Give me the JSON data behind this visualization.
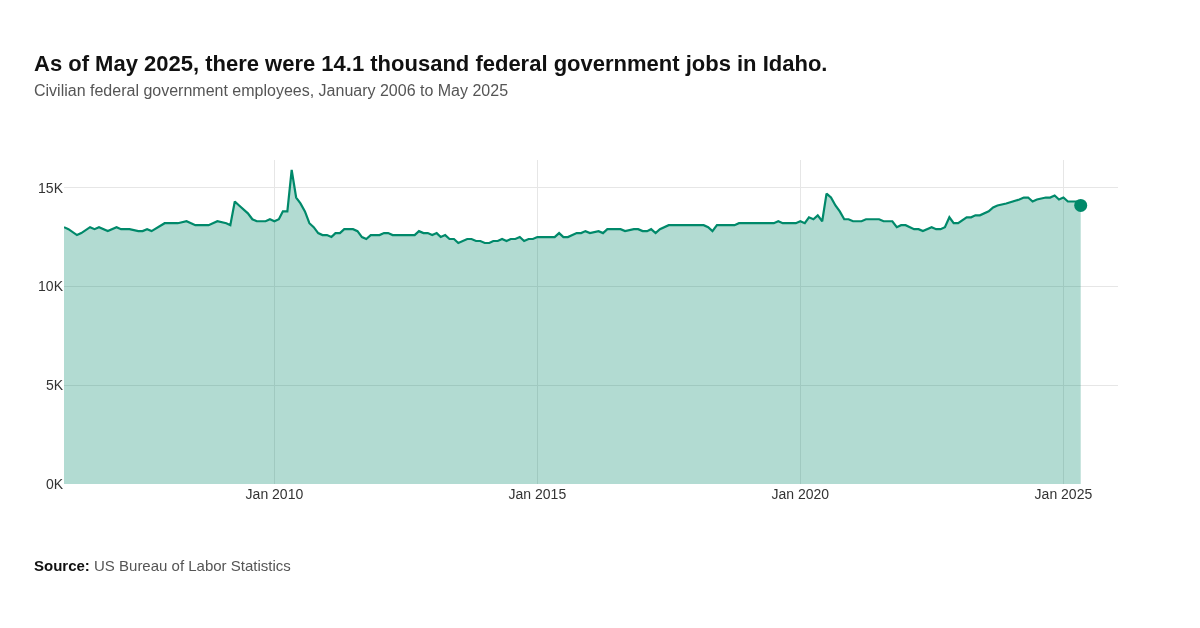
{
  "chart_data": {
    "type": "area",
    "title": "As of May 2025, there were 14.1 thousand federal government jobs in Idaho.",
    "subtitle": "Civilian federal government employees, January 2006 to May 2025",
    "annotations": [
      "Source: US Bureau of Labor Statistics"
    ],
    "series": [
      {
        "color": "#00896a",
        "x": [
          "2006-01",
          "2006-02",
          "2006-04",
          "2006-05",
          "2006-07",
          "2006-08",
          "2006-09",
          "2006-11",
          "2007-01",
          "2007-02",
          "2007-04",
          "2007-06",
          "2007-07",
          "2007-08",
          "2007-09",
          "2007-12",
          "2008-03",
          "2008-05",
          "2008-07",
          "2008-10",
          "2008-12",
          "2009-02",
          "2009-03",
          "2009-04",
          "2009-05",
          "2009-07",
          "2009-08",
          "2009-09",
          "2009-11",
          "2009-12",
          "2010-01",
          "2010-02",
          "2010-03",
          "2010-04",
          "2010-05",
          "2010-06",
          "2010-07",
          "2010-08",
          "2010-09",
          "2010-10",
          "2010-11",
          "2010-12",
          "2011-01",
          "2011-02",
          "2011-03",
          "2011-04",
          "2011-05",
          "2011-07",
          "2011-08",
          "2011-09",
          "2011-10",
          "2011-11",
          "2012-01",
          "2012-02",
          "2012-03",
          "2012-04",
          "2012-09",
          "2012-10",
          "2012-11",
          "2012-12",
          "2013-01",
          "2013-02",
          "2013-03",
          "2013-04",
          "2013-05",
          "2013-06",
          "2013-07",
          "2013-09",
          "2013-10",
          "2013-11",
          "2013-12",
          "2014-01",
          "2014-02",
          "2014-03",
          "2014-04",
          "2014-05",
          "2014-06",
          "2014-07",
          "2014-08",
          "2014-09",
          "2014-10",
          "2014-11",
          "2014-12",
          "2015-01",
          "2015-05",
          "2015-06",
          "2015-07",
          "2015-08",
          "2015-10",
          "2015-11",
          "2015-12",
          "2016-01",
          "2016-03",
          "2016-04",
          "2016-05",
          "2016-08",
          "2016-09",
          "2016-11",
          "2016-12",
          "2017-01",
          "2017-02",
          "2017-03",
          "2017-04",
          "2017-05",
          "2017-07",
          "2018-03",
          "2018-04",
          "2018-05",
          "2018-06",
          "2018-08",
          "2018-10",
          "2018-11",
          "2019-07",
          "2019-08",
          "2019-09",
          "2019-12",
          "2020-01",
          "2020-02",
          "2020-03",
          "2020-04",
          "2020-05",
          "2020-06",
          "2020-07",
          "2020-08",
          "2020-09",
          "2020-10",
          "2020-11",
          "2020-12",
          "2021-01",
          "2021-03",
          "2021-04",
          "2021-07",
          "2021-08",
          "2021-10",
          "2021-11",
          "2021-12",
          "2022-01",
          "2022-03",
          "2022-04",
          "2022-05",
          "2022-07",
          "2022-08",
          "2022-09",
          "2022-10",
          "2022-11",
          "2022-12",
          "2023-01",
          "2023-03",
          "2023-04",
          "2023-05",
          "2023-06",
          "2023-08",
          "2023-09",
          "2023-10",
          "2023-12",
          "2024-03",
          "2024-04",
          "2024-05",
          "2024-06",
          "2024-07",
          "2024-09",
          "2024-10",
          "2024-11",
          "2024-12",
          "2025-01",
          "2025-02",
          "2025-04",
          "2025-05"
        ],
        "values": [
          13000,
          12900,
          12600,
          12700,
          13000,
          12900,
          13000,
          12800,
          13000,
          12900,
          12900,
          12800,
          12800,
          12900,
          12800,
          13200,
          13200,
          13300,
          13100,
          13100,
          13300,
          13200,
          13100,
          14300,
          14100,
          13700,
          13400,
          13300,
          13300,
          13400,
          13300,
          13400,
          13800,
          13800,
          15900,
          14500,
          14200,
          13800,
          13200,
          13000,
          12700,
          12600,
          12600,
          12500,
          12700,
          12700,
          12900,
          12900,
          12800,
          12500,
          12400,
          12600,
          12600,
          12700,
          12700,
          12600,
          12600,
          12800,
          12700,
          12700,
          12600,
          12700,
          12500,
          12600,
          12400,
          12400,
          12200,
          12400,
          12400,
          12300,
          12300,
          12200,
          12200,
          12300,
          12300,
          12400,
          12300,
          12400,
          12400,
          12500,
          12300,
          12400,
          12400,
          12500,
          12500,
          12700,
          12500,
          12500,
          12700,
          12700,
          12800,
          12700,
          12800,
          12700,
          12900,
          12900,
          12800,
          12900,
          12900,
          12800,
          12800,
          12900,
          12700,
          12900,
          13100,
          13100,
          13000,
          12800,
          13100,
          13100,
          13100,
          13200,
          13200,
          13300,
          13200,
          13200,
          13300,
          13200,
          13500,
          13400,
          13600,
          13300,
          14700,
          14500,
          14100,
          13800,
          13400,
          13400,
          13300,
          13300,
          13400,
          13400,
          13300,
          13300,
          13000,
          13100,
          13100,
          12900,
          12900,
          12800,
          13000,
          12900,
          12900,
          13000,
          13500,
          13200,
          13200,
          13500,
          13500,
          13600,
          13600,
          13800,
          14000,
          14100,
          14200,
          14400,
          14500,
          14500,
          14300,
          14400,
          14500,
          14500,
          14600,
          14400,
          14500,
          14300,
          14300,
          14100
        ]
      },
      {
        "type": "scatter",
        "color": "#00896a",
        "marker": "circle",
        "x": [
          "2025-05"
        ],
        "values": [
          14100
        ]
      }
    ],
    "xlim": [
      "2006-01-01",
      "2026-01-15"
    ],
    "xticks": [
      {
        "value": "2010-01-01",
        "label": "Jan 2010"
      },
      {
        "value": "2015-01-01",
        "label": "Jan 2015"
      },
      {
        "value": "2020-01-01",
        "label": "Jan 2020"
      },
      {
        "value": "2025-01-01",
        "label": "Jan 2025"
      }
    ],
    "ylim": [
      0,
      16400
    ],
    "yticks": [
      {
        "value": 0,
        "label": "0K"
      },
      {
        "value": 5000,
        "label": "5K"
      },
      {
        "value": 10000,
        "label": "10K"
      },
      {
        "value": 15000,
        "label": "15K"
      }
    ],
    "grid": true
  }
}
